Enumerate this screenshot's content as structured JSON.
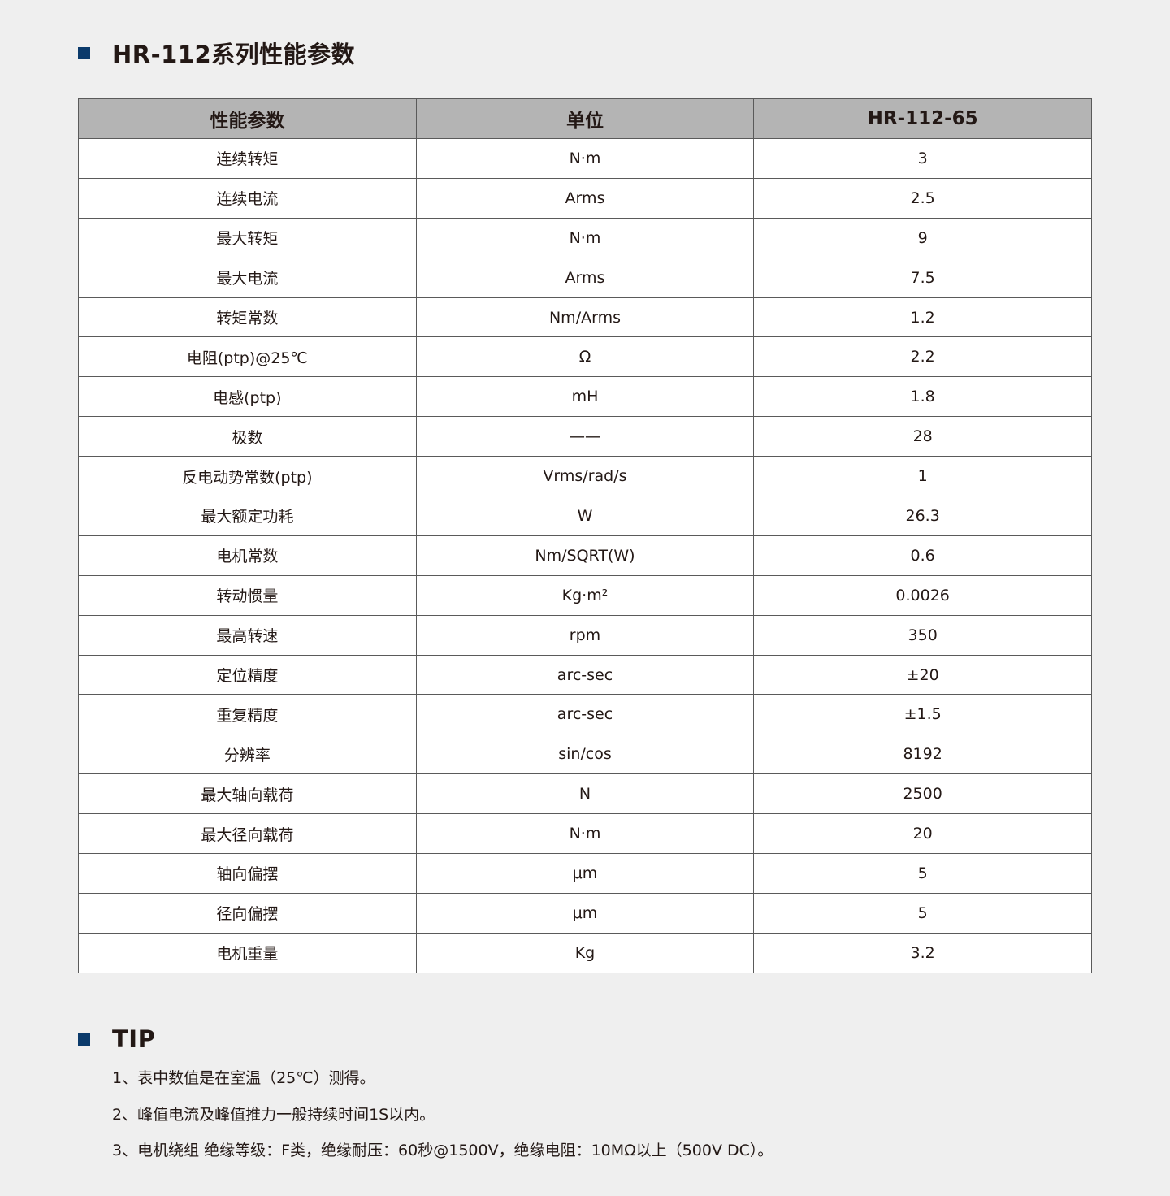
{
  "title": "HR-112系列性能参数",
  "colors": {
    "accent": "#0b3a6b",
    "header_bg": "#b4b4b4",
    "page_bg": "#efefef"
  },
  "table": {
    "headers": [
      "性能参数",
      "单位",
      "HR-112-65"
    ],
    "rows": [
      [
        "连续转矩",
        "N·m",
        "3"
      ],
      [
        "连续电流",
        "Arms",
        "2.5"
      ],
      [
        "最大转矩",
        "N·m",
        "9"
      ],
      [
        "最大电流",
        "Arms",
        "7.5"
      ],
      [
        "转矩常数",
        "Nm/Arms",
        "1.2"
      ],
      [
        "电阻(ptp)@25℃",
        "Ω",
        "2.2"
      ],
      [
        "电感(ptp)",
        "mH",
        "1.8"
      ],
      [
        "极数",
        "——",
        "28"
      ],
      [
        "反电动势常数(ptp)",
        "Vrms/rad/s",
        "1"
      ],
      [
        "最大额定功耗",
        "W",
        "26.3"
      ],
      [
        "电机常数",
        "Nm/SQRT(W)",
        "0.6"
      ],
      [
        "转动惯量",
        "Kg·m²",
        "0.0026"
      ],
      [
        "最高转速",
        "rpm",
        "350"
      ],
      [
        "定位精度",
        "arc-sec",
        "±20"
      ],
      [
        "重复精度",
        "arc-sec",
        "±1.5"
      ],
      [
        "分辨率",
        "sin/cos",
        "8192"
      ],
      [
        "最大轴向载荷",
        "N",
        "2500"
      ],
      [
        "最大径向载荷",
        "N·m",
        "20"
      ],
      [
        "轴向偏摆",
        "μm",
        "5"
      ],
      [
        "径向偏摆",
        "μm",
        "5"
      ],
      [
        "电机重量",
        "Kg",
        "3.2"
      ]
    ]
  },
  "tip": {
    "title": "TIP",
    "items": [
      "1、表中数值是在室温（25℃）测得。",
      "2、峰值电流及峰值推力一般持续时间1S以内。",
      "3、电机绕组 绝缘等级：F类，绝缘耐压：60秒@1500V，绝缘电阻：10MΩ以上（500V DC）。"
    ]
  }
}
